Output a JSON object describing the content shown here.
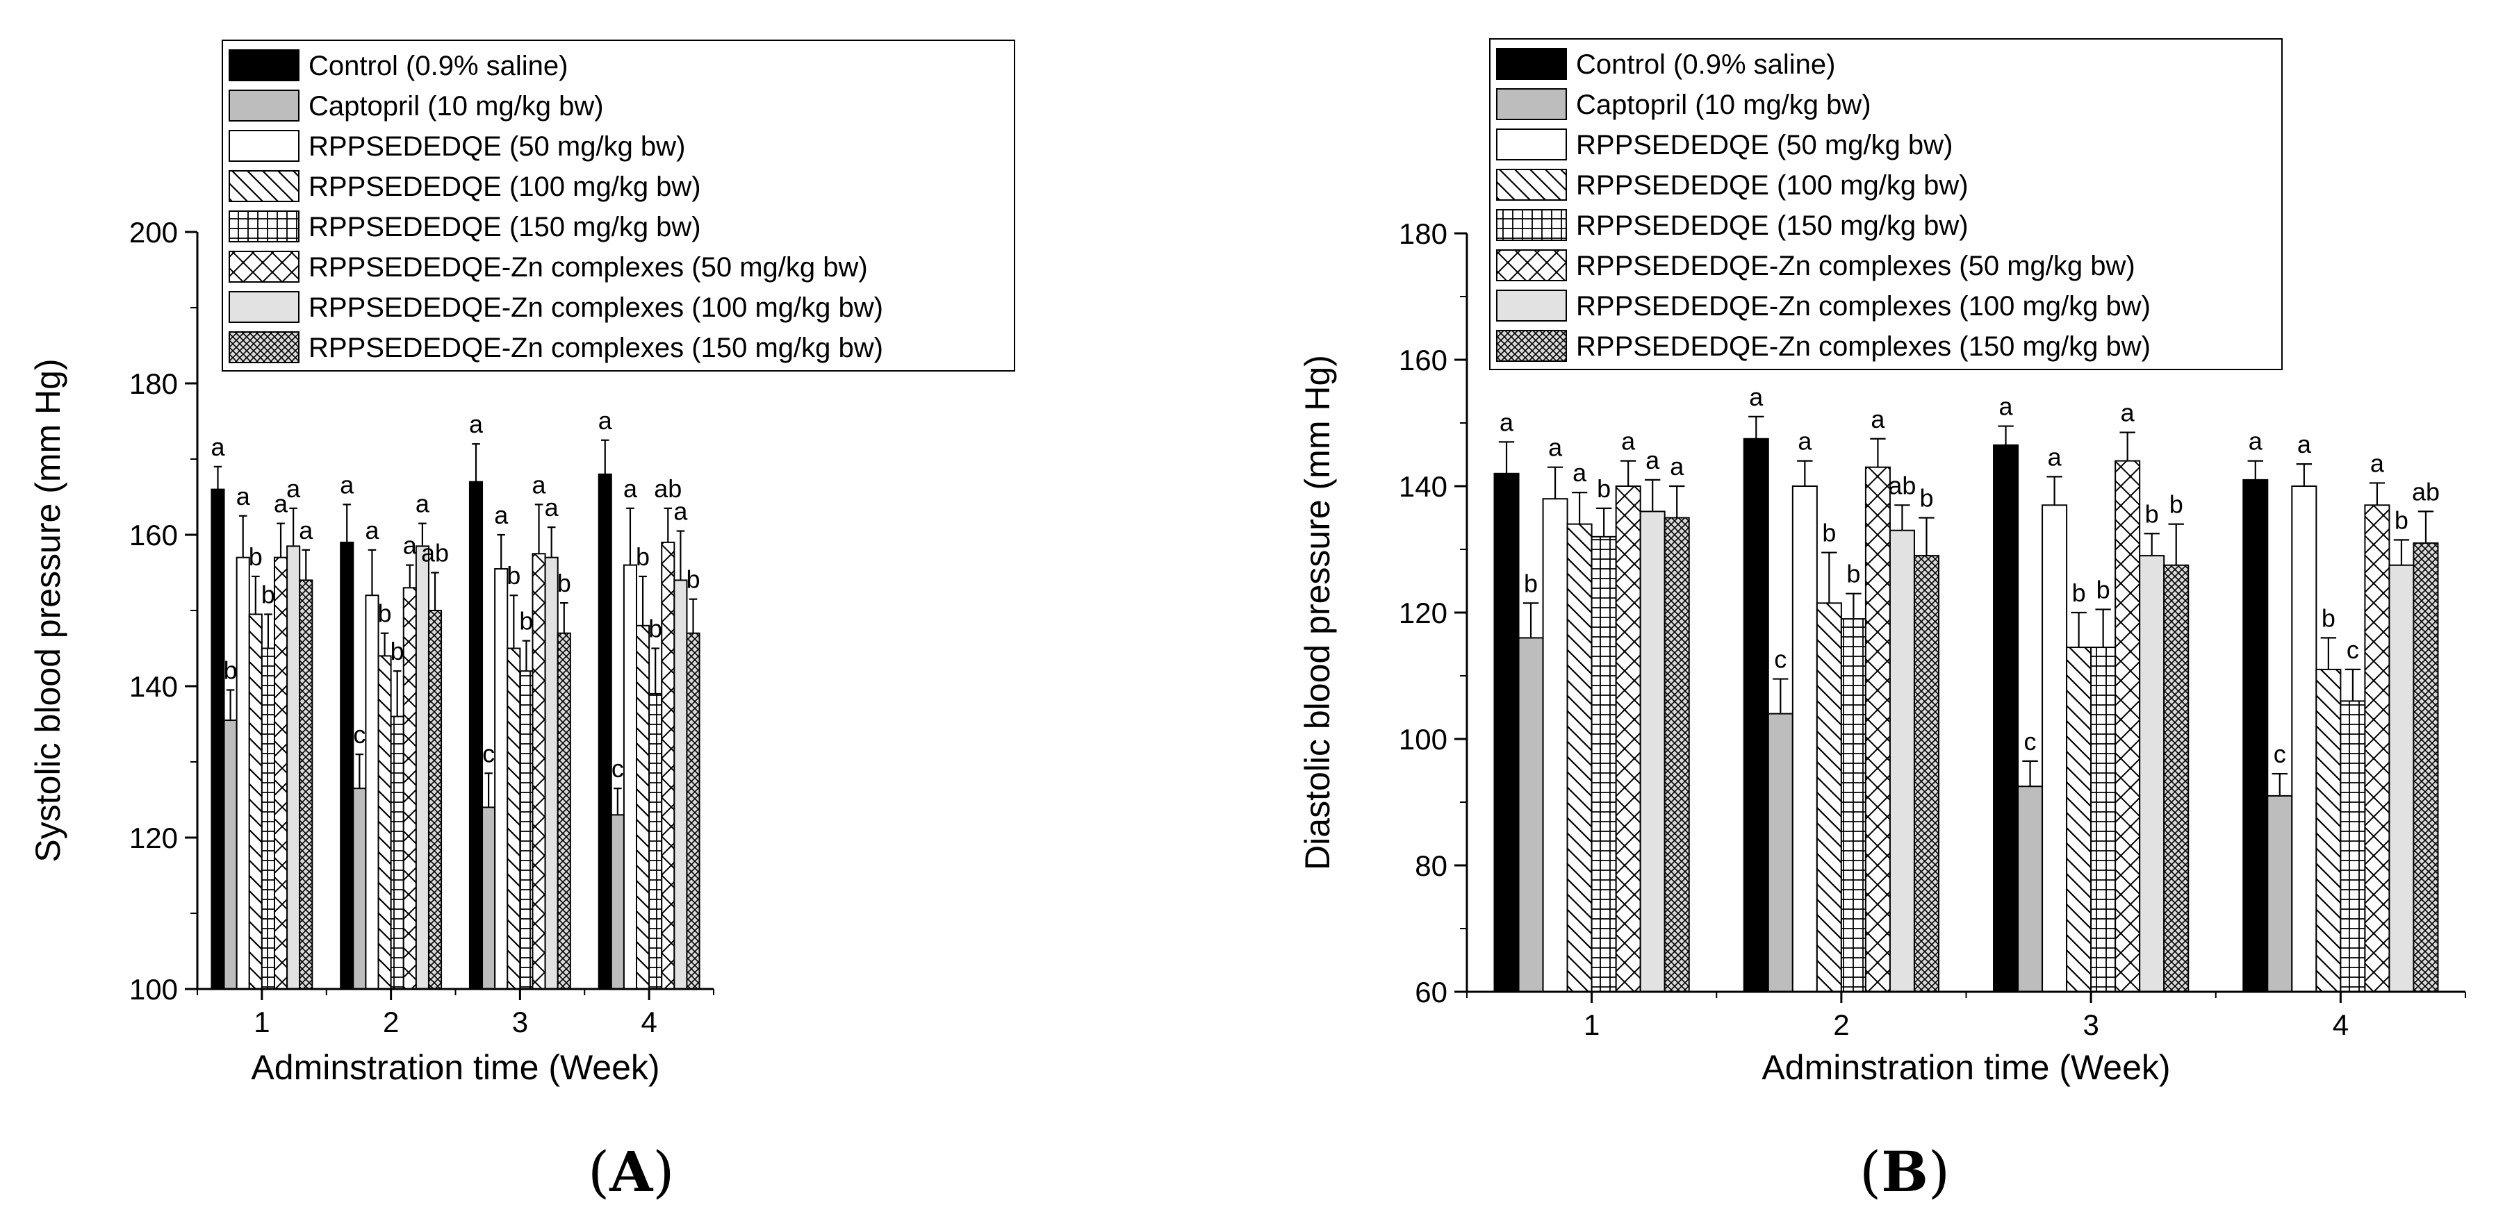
{
  "colors": {
    "axis": "#000000",
    "control": "#000000",
    "captopril": "#bdbdbd",
    "white": "#ffffff",
    "light": "#e2e2e2"
  },
  "legend_entries": [
    "Control (0.9% saline)",
    "Captopril (10 mg/kg bw)",
    "RPPSEDEDQE (50 mg/kg bw)",
    "RPPSEDEDQE (100 mg/kg bw)",
    "RPPSEDEDQE (150 mg/kg bw)",
    "RPPSEDEDQE-Zn complexes (50 mg/kg bw)",
    "RPPSEDEDQE-Zn complexes (100 mg/kg bw)",
    "RPPSEDEDQE-Zn complexes (150 mg/kg bw)"
  ],
  "series_patterns": [
    "solid-black",
    "solid-gray",
    "white",
    "diag-down",
    "grid",
    "crosshatch-x",
    "light-gray",
    "dense-crosshatch"
  ],
  "chart_data": [
    {
      "panel": "A",
      "type": "bar",
      "categories": [
        "1",
        "2",
        "3",
        "4"
      ],
      "xlabel": "Adminstration time (Week)",
      "ylabel": "Systolic blood pressure (mm Hg)",
      "ylim": [
        100,
        200
      ],
      "yticks": [
        100,
        120,
        140,
        160,
        180,
        200
      ],
      "legend_position": "top",
      "series": [
        {
          "name": "Control (0.9% saline)",
          "values": [
            166,
            159,
            167,
            168
          ],
          "errors": [
            3,
            5,
            5,
            4.5
          ],
          "labels": [
            "a",
            "a",
            "a",
            "a"
          ]
        },
        {
          "name": "Captopril (10 mg/kg bw)",
          "values": [
            135.5,
            126.5,
            124,
            123
          ],
          "errors": [
            4,
            4.5,
            4.5,
            3.5
          ],
          "labels": [
            "b",
            "c",
            "c",
            "c"
          ]
        },
        {
          "name": "RPPSEDEDQE (50 mg/kg bw)",
          "values": [
            157,
            152,
            155.5,
            156
          ],
          "errors": [
            5.5,
            6,
            4.5,
            7.5
          ],
          "labels": [
            "a",
            "a",
            "a",
            "a"
          ]
        },
        {
          "name": "RPPSEDEDQE (100 mg/kg bw)",
          "values": [
            149.5,
            144,
            145,
            148
          ],
          "errors": [
            5,
            3,
            7,
            6.5
          ],
          "labels": [
            "b",
            "b",
            "b",
            "b"
          ]
        },
        {
          "name": "RPPSEDEDQE (150 mg/kg bw)",
          "values": [
            145,
            136,
            142,
            139
          ],
          "errors": [
            4.5,
            6,
            4,
            6
          ],
          "labels": [
            "b",
            "b",
            "b",
            "b"
          ]
        },
        {
          "name": "RPPSEDEDQE-Zn complexes (50 mg/kg bw)",
          "values": [
            157,
            153,
            157.5,
            159
          ],
          "errors": [
            4.5,
            3,
            6.5,
            4.5
          ],
          "labels": [
            "a",
            "a",
            "a",
            "ab"
          ]
        },
        {
          "name": "RPPSEDEDQE-Zn complexes (100 mg/kg bw)",
          "values": [
            158.5,
            158.5,
            157,
            154
          ],
          "errors": [
            5,
            3,
            4,
            6.5
          ],
          "labels": [
            "a",
            "a",
            "a",
            "a"
          ]
        },
        {
          "name": "RPPSEDEDQE-Zn complexes (150 mg/kg bw)",
          "values": [
            154,
            150,
            147,
            147
          ],
          "errors": [
            4,
            5,
            4,
            4.5
          ],
          "labels": [
            "a",
            "ab",
            "b",
            "b"
          ]
        }
      ]
    },
    {
      "panel": "B",
      "type": "bar",
      "categories": [
        "1",
        "2",
        "3",
        "4"
      ],
      "xlabel": "Adminstration time (Week)",
      "ylabel": "Diastolic blood pressure (mm Hg)",
      "ylim": [
        60,
        180
      ],
      "yticks": [
        60,
        80,
        100,
        120,
        140,
        160,
        180
      ],
      "legend_position": "top",
      "series": [
        {
          "name": "Control (0.9% saline)",
          "values": [
            142,
            147.5,
            146.5,
            141
          ],
          "errors": [
            5,
            3.5,
            3,
            3
          ],
          "labels": [
            "a",
            "a",
            "a",
            "a"
          ]
        },
        {
          "name": "Captopril (10 mg/kg bw)",
          "values": [
            116,
            104,
            92.5,
            91
          ],
          "errors": [
            5.5,
            5.5,
            4,
            3.5
          ],
          "labels": [
            "b",
            "c",
            "c",
            "c"
          ]
        },
        {
          "name": "RPPSEDEDQE (50 mg/kg bw)",
          "values": [
            138,
            140,
            137,
            140
          ],
          "errors": [
            5,
            4,
            4.5,
            3.5
          ],
          "labels": [
            "a",
            "a",
            "a",
            "a"
          ]
        },
        {
          "name": "RPPSEDEDQE (100 mg/kg bw)",
          "values": [
            134,
            121.5,
            114.5,
            111
          ],
          "errors": [
            5,
            8,
            5.5,
            5
          ],
          "labels": [
            "a",
            "b",
            "b",
            "b"
          ]
        },
        {
          "name": "RPPSEDEDQE (150 mg/kg bw)",
          "values": [
            132,
            119,
            114.5,
            106
          ],
          "errors": [
            4.5,
            4,
            6,
            5
          ],
          "labels": [
            "b",
            "b",
            "b",
            "c"
          ]
        },
        {
          "name": "RPPSEDEDQE-Zn complexes (50 mg/kg bw)",
          "values": [
            140,
            143,
            144,
            137
          ],
          "errors": [
            4,
            4.5,
            4.5,
            3.5
          ],
          "labels": [
            "a",
            "a",
            "a",
            "a"
          ]
        },
        {
          "name": "RPPSEDEDQE-Zn complexes (100 mg/kg bw)",
          "values": [
            136,
            133,
            129,
            127.5
          ],
          "errors": [
            5,
            4,
            3.5,
            4
          ],
          "labels": [
            "a",
            "ab",
            "b",
            "b"
          ]
        },
        {
          "name": "RPPSEDEDQE-Zn complexes (150 mg/kg bw)",
          "values": [
            135,
            129,
            127.5,
            131
          ],
          "errors": [
            5,
            6,
            6.5,
            5
          ],
          "labels": [
            "a",
            "b",
            "b",
            "ab"
          ]
        }
      ]
    }
  ],
  "panel_labels": [
    {
      "paren_open": "(",
      "letter": "A",
      "paren_close": ")"
    },
    {
      "paren_open": "(",
      "letter": "B",
      "paren_close": ")"
    }
  ]
}
